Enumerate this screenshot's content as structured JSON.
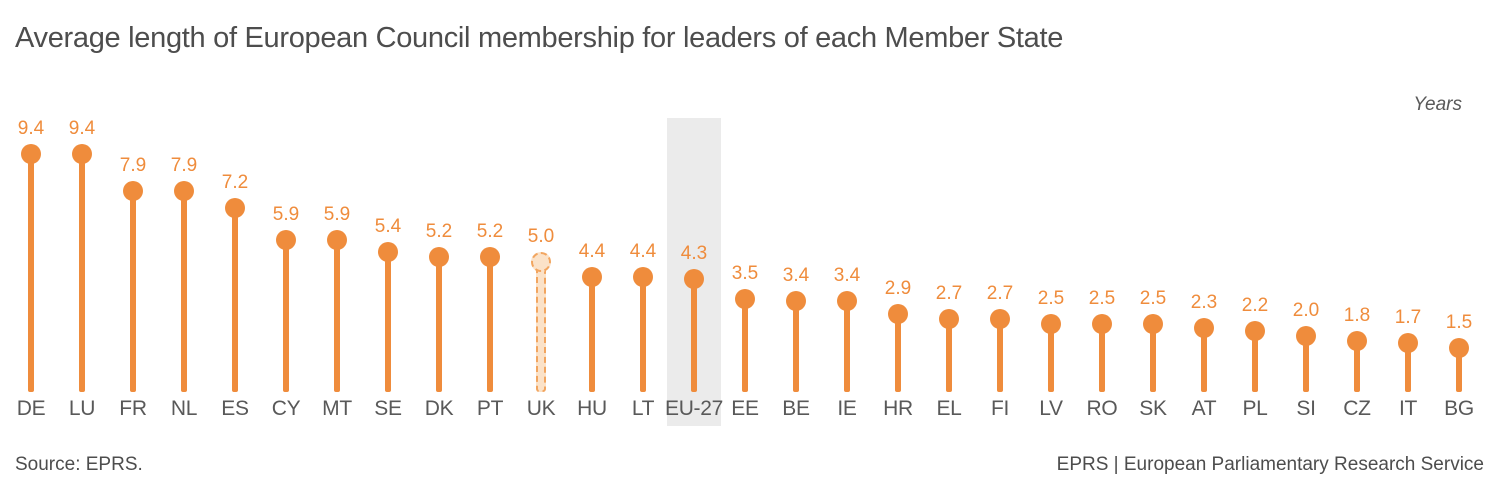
{
  "chart_data": {
    "type": "bar",
    "style": "lollipop",
    "title": "Average length of European Council membership for leaders of each Member State",
    "unit_label": "Years",
    "xlabel": "",
    "ylabel": "Years",
    "ylim": [
      0,
      10
    ],
    "grid": false,
    "legend": "none",
    "categories": [
      "DE",
      "LU",
      "FR",
      "NL",
      "ES",
      "CY",
      "MT",
      "SE",
      "DK",
      "PT",
      "UK",
      "HU",
      "LT",
      "EU-27",
      "EE",
      "BE",
      "IE",
      "HR",
      "EL",
      "FI",
      "LV",
      "RO",
      "SK",
      "AT",
      "PL",
      "SI",
      "CZ",
      "IT",
      "BG"
    ],
    "values": [
      9.4,
      9.4,
      7.9,
      7.9,
      7.2,
      5.9,
      5.9,
      5.4,
      5.2,
      5.2,
      5.0,
      4.4,
      4.4,
      4.3,
      3.5,
      3.4,
      3.4,
      2.9,
      2.7,
      2.7,
      2.5,
      2.5,
      2.5,
      2.3,
      2.2,
      2.0,
      1.8,
      1.7,
      1.5
    ],
    "highlighted_category": "EU-27",
    "dashed_category": "UK",
    "colors": {
      "accent_orange": "#ef8c3c",
      "dashed_fill": "#fbe2c8",
      "dashed_border": "#f2a55f",
      "highlight_band": "#ebebeb",
      "category_label_gray": "#595959",
      "title_gray": "#4d4d4d"
    }
  },
  "footer": {
    "source": "Source: EPRS.",
    "credit": "EPRS | European Parliamentary Research Service"
  }
}
